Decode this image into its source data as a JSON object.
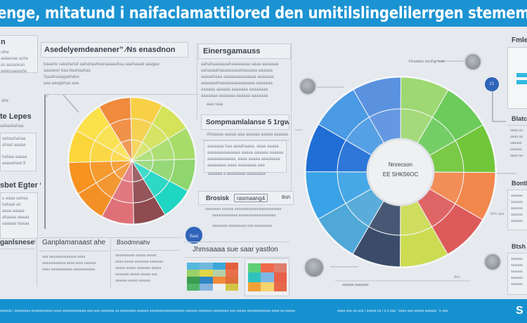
{
  "header": {
    "title": "enge, mitatund i naifaclamattilored den umitilslingelilerrgen stemem sonianne, bislera"
  },
  "left_column": {
    "panel_top": {
      "title": "n",
      "lines": [
        "uthe",
        "aelaesae ache",
        "as aasasean",
        "aelassaeaahe",
        "ahe"
      ]
    },
    "panel_mid": {
      "title": "te Lepes",
      "subtitle": "aahaahahaa",
      "lines": [
        "aahaahahaa",
        "ahaat aaaaa",
        "hahaa aaaaa",
        "aaaaahaat 8"
      ]
    },
    "panel_low": {
      "title": "sbet Egter %",
      "lines": [
        "u aaaa aahaa",
        "hahaat ah",
        "aaaa aaaaa",
        "ahaaaa aaaaa",
        "aaaaaa haaaa"
      ]
    },
    "panel_bottom": {
      "title": "ganlsneset"
    }
  },
  "left_chart_panel": {
    "title": "Asedelyemdeanener” ⁄Ns enasdnon",
    "lines": [
      "baaahe saeahahaf aahahaaheanaaaaahaa aaahaaad aaagae",
      "aaaaeen baa baahaahaa",
      "Saaahaaagaahaha",
      "aaa aaagahaa aaa"
    ],
    "axis_label": "0"
  },
  "left_pie": {
    "slices": [
      {
        "color": "#f08a3c",
        "label": "orange"
      },
      {
        "color": "#f7d046",
        "label": "yellow"
      },
      {
        "color": "#d4e35a",
        "label": "lime"
      },
      {
        "color": "#a8dd6a",
        "label": "light-green"
      },
      {
        "color": "#8fd66e",
        "label": "green"
      },
      {
        "color": "#1fd6c3",
        "label": "teal"
      },
      {
        "color": "#8e4a4f",
        "label": "maroon"
      },
      {
        "color": "#e07078",
        "label": "pink"
      },
      {
        "color": "#f39025",
        "label": "orange-bottom"
      },
      {
        "color": "#f7931f",
        "label": "orange-left"
      },
      {
        "color": "#fbd63a",
        "label": "yellow-left"
      },
      {
        "color": "#fbe14a",
        "label": "yellow-upper"
      }
    ]
  },
  "center_column": {
    "panel_top": {
      "title": "Einersgamauss",
      "lines": [
        "aahahaaaaaaahaaaaaaaa aaaa aaaaaaa",
        "aahaaaahaaaaaaaaahaaaaaa aaaaaa",
        "aaaaahaaa aaaaaaaaaaaaaa aaaaaaa",
        "aaaaaaahaaaaaaaaaaaaaaa aaaaaaa",
        "aaaaaa aaaaaa aaaaaaa aaaaaaaa",
        "aaaaaaa aaaaaaa aaaaaa aaaaaaa"
      ],
      "signature": "aaa  /aaa"
    },
    "panel_mid": {
      "title": "Sompmamlalanse 5 1rgw",
      "subtitle": "Ahaaaaa aaaaa aaa aaaaaa aaaaa aaaaaa aaa",
      "lines": [
        "aaaaaaa haa aaaahaaaa, aaaa aaaaa",
        "aaaaaaaaaaaaaa aaaaa aaaaaa aaaaaaa",
        "aaaaaaaaaaaa, aaaa aaaaa aaaaaaaa",
        "aaaaaaaa aaaa aaaaaaaa aaa",
        "aaaaaa a aaaaaaaa aaaaaaaa"
      ]
    },
    "panel_lower": {
      "title": "Brosisk",
      "boxed": "rasmaang4",
      "tag": "Bsh",
      "lines": [
        "aaaaaaaa aaaaaa aaaaaaaaaaaaaaaaaaaaaaaa",
        "aaaaaaaaaaaaa   aaaaaaaaaaaaaaaaaaa",
        "aaaaaaaa aaaaaaaaa aaa aaaaaaaaa"
      ],
      "badge": "Baal"
    },
    "panel_bottom": {
      "title": "Jhmsaaaa sue saar yastlon"
    }
  },
  "center_bottom_cards": [
    {
      "title": "Ganplamanaast ahe",
      "lines": [
        "aaa aaaaaaaaaaaaaa aaaa",
        "aaaaaaaaaaaa aaaa aaaa aaaaaa",
        "aaaa aaaaaaaaaaa aaaaaaaaaaa"
      ]
    },
    {
      "title": "Bsodmnahv",
      "lines": [
        "aaaaaaaaaa aaaaa aaaaa",
        "aaaa aaaaa aaaaaaa aaaaaaa",
        "aaaaa aaaaa aaaaaaa aaaaa",
        "aaaaaaa aaaaa aaaaa aaa",
        "aaaaaa aaaaa aaaaaa"
      ]
    }
  ],
  "heatmaps": [
    {
      "cells": [
        "#55b7e0",
        "#6fb7df",
        "#3aa7d8",
        "#e3603f",
        "#9ad06a",
        "#e0d545",
        "#b6d0a8",
        "#e8704a",
        "#3b9c4f",
        "#2f86c3",
        "#f18b3a",
        "#e0703f",
        "#4fb56a",
        "#85b5df",
        "#f0f0f0",
        "#d0c643"
      ]
    },
    {
      "cells": [
        "#5fcf75",
        "#ef6a4c",
        "#e07e6e",
        "#2fc3bd",
        "#7eb7e6",
        "#e8604a",
        "#f2a137",
        "#f6d36d",
        "#e8684a"
      ]
    }
  ],
  "right_pie": {
    "center_lines": [
      "Nnrecson",
      "ЕЕ SНКS6ОС"
    ],
    "rings": 3,
    "slices": [
      {
        "color": "#5a92e0",
        "label": "blue-top"
      },
      {
        "color": "#9ed872",
        "label": "green-top"
      },
      {
        "color": "#6ccb5a",
        "label": "green-right"
      },
      {
        "color": "#71c63a",
        "label": "green-mid"
      },
      {
        "color": "#f2874c",
        "label": "orange"
      },
      {
        "color": "#dd5a5a",
        "label": "red"
      },
      {
        "color": "#cbdc52",
        "label": "lime-bottom"
      },
      {
        "color": "#3a4c6a",
        "label": "navy"
      },
      {
        "color": "#4fa8d8",
        "label": "teal-blue"
      },
      {
        "color": "#3aa2e6",
        "label": "light-blue"
      },
      {
        "color": "#1f6ed6",
        "label": "deep-blue"
      },
      {
        "color": "#4a9ae4",
        "label": "blue-left"
      }
    ],
    "annotations": [
      "Fhsation snnFgr lnsk",
      "Ahn",
      "APe aaa",
      "aaaaaa aaaaaaa"
    ],
    "badge": "21"
  },
  "right_column": {
    "panel_top": {
      "title": "Fmle"
    },
    "panel_mid": {
      "title": "Blatc",
      "lines": [
        "aaaa aa",
        "aaaa aa",
        "aaaaaa",
        "aaaaaa",
        "aaaa aa"
      ]
    },
    "panel_low": {
      "title": "Bonth",
      "lines": [
        "aaaaaa",
        "aaaaaa",
        "aaaaaa",
        "aaaaaa",
        "aaaaaa"
      ]
    },
    "panel_bottom": {
      "title": "Btsh",
      "lines": [
        "aaaaaa",
        "aaaaaa",
        "aaaaaa",
        "aaaaaa",
        "aaaaaa"
      ]
    }
  },
  "footer": {
    "left_text": "aaaaaa | aaaaaaaa aaaaaaaaaaa aaaa aaaaaaaaaaaa aaa aaa aaaaaaa aa aaaaaaaa aaaaaa aaaaaaaaaaaaaaaaaa aaaaaa aaaaaaa aaaaaaaa aaa aaaaa aaaaaaaaaaaa aaaa aa aaaaa",
    "mid_text": "aaaa aaa aa aaa | aaaaa aa | a a aaa ' aaaa aaa aaaaa aaaaaa ' a aaa",
    "right_text": "S"
  }
}
